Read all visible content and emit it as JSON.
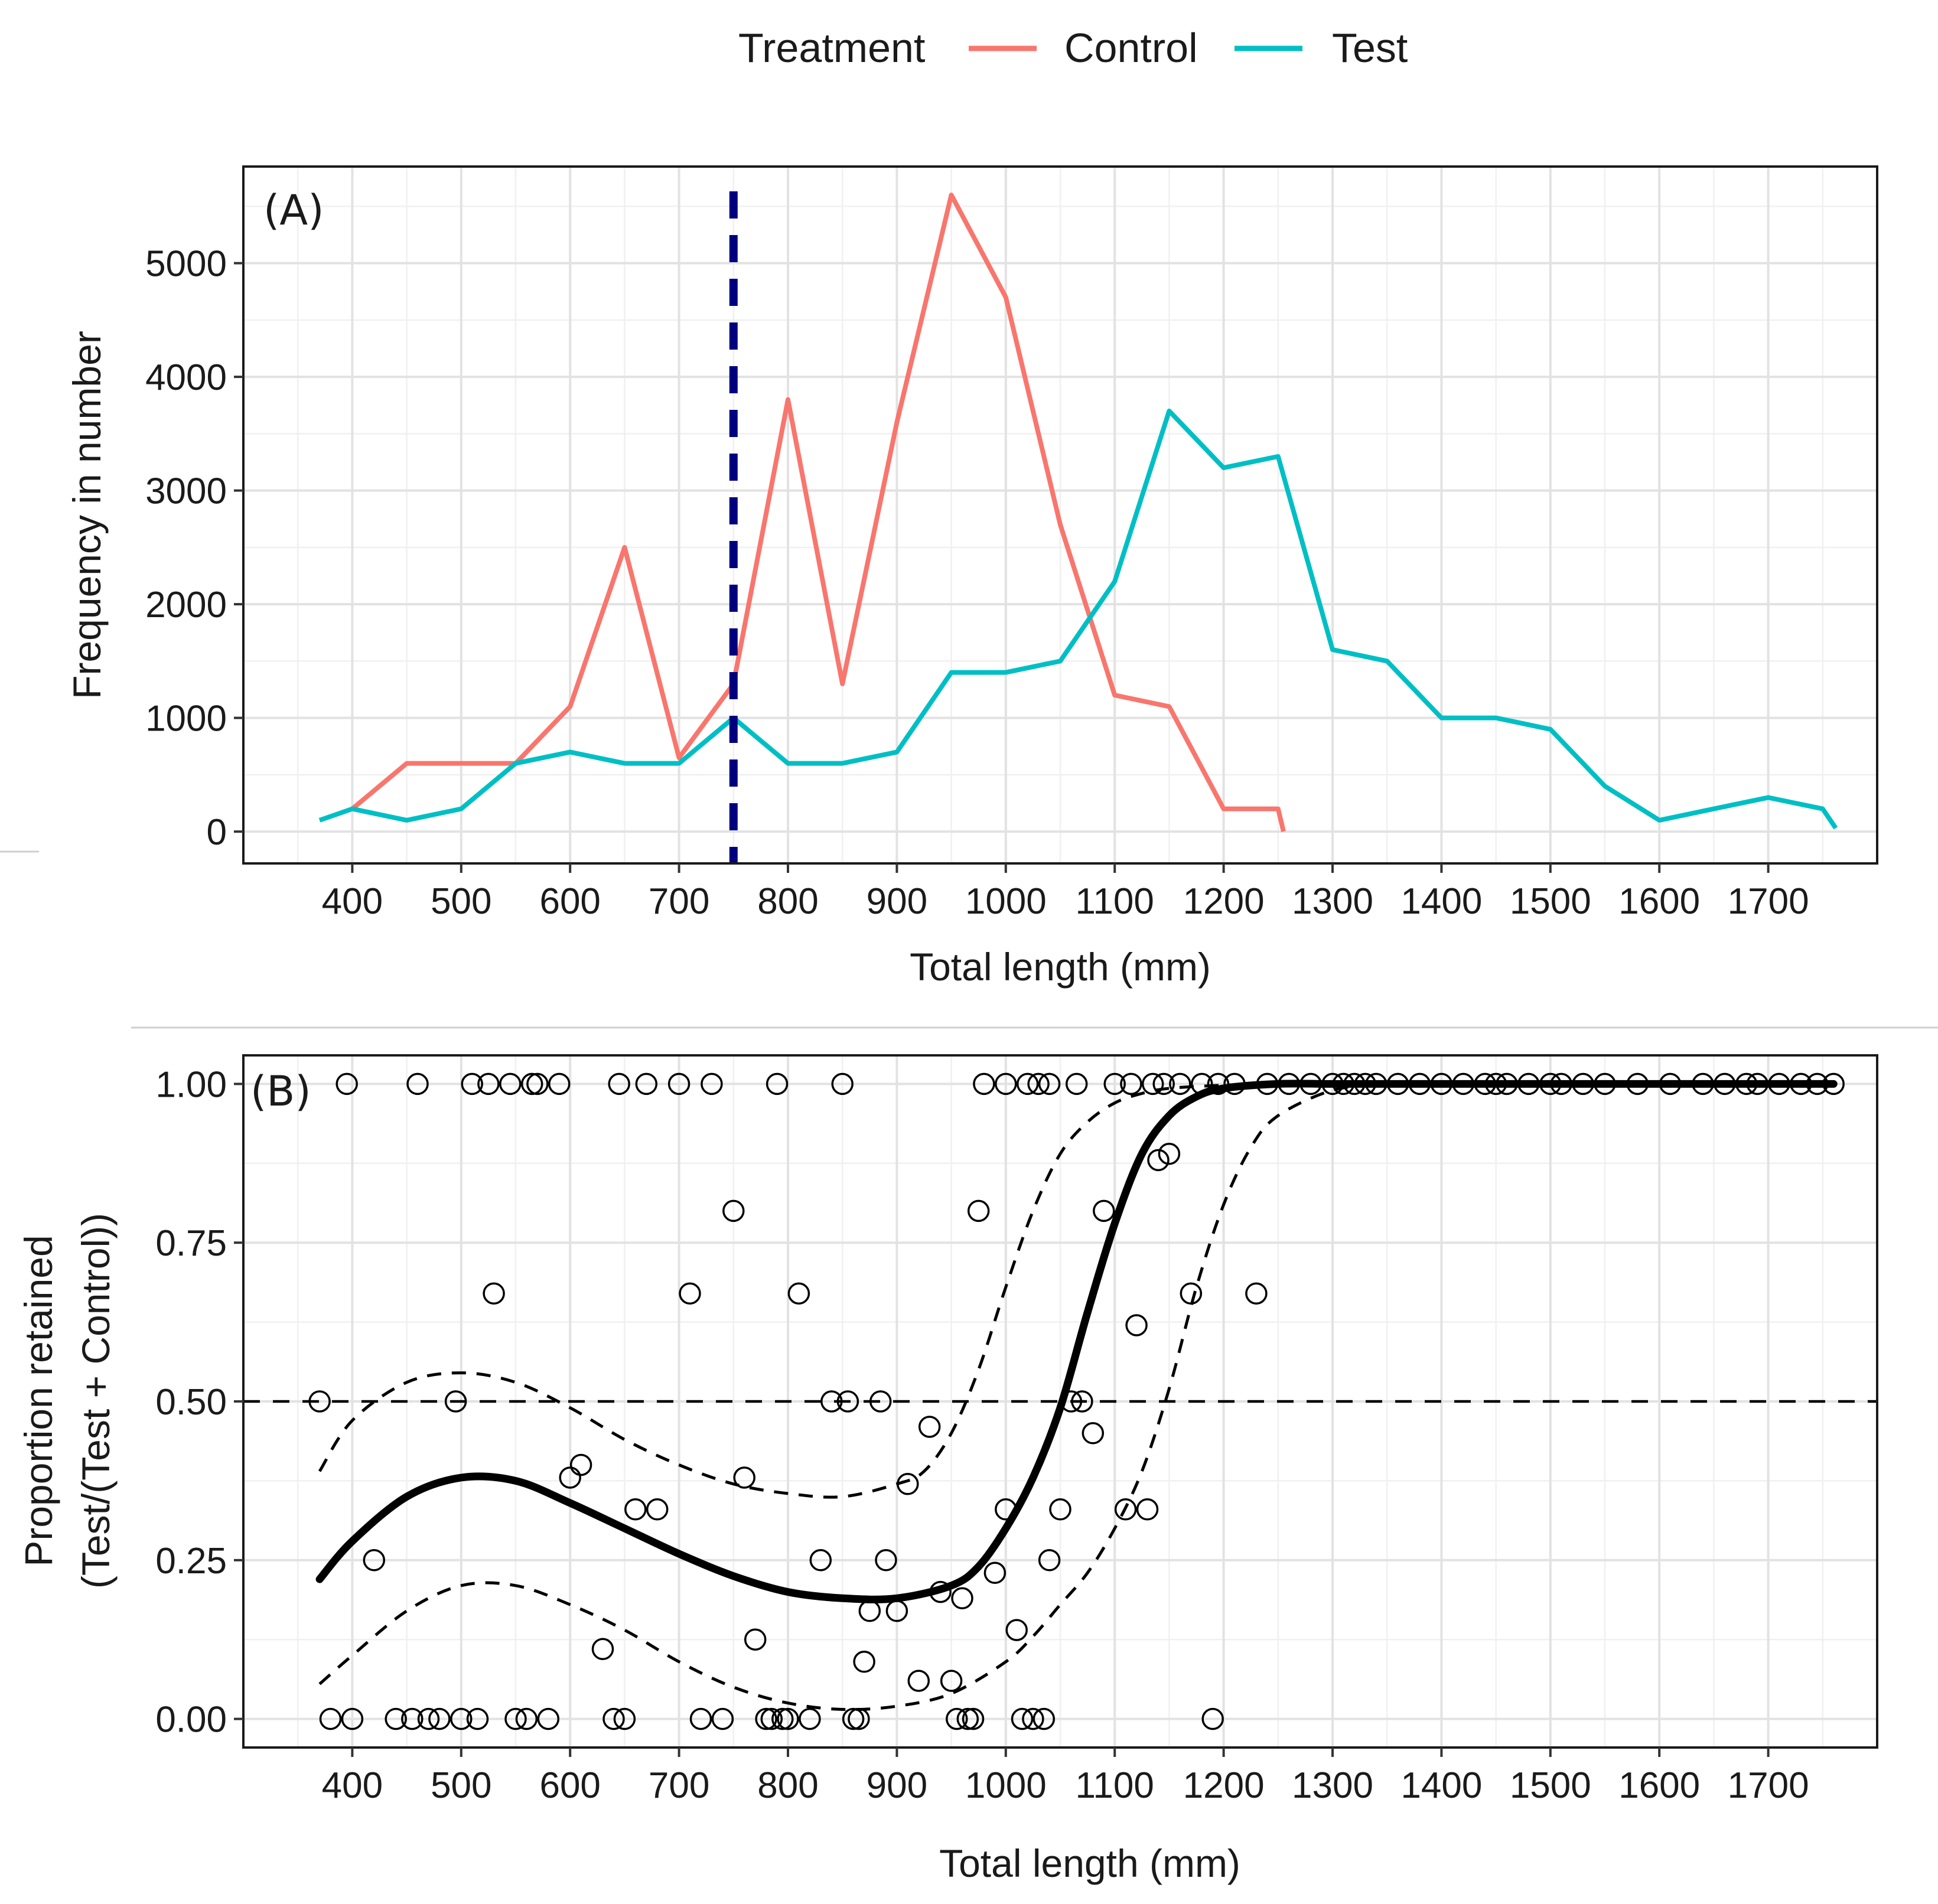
{
  "legend": {
    "title": "Treatment",
    "entries": [
      {
        "label": "Control",
        "color": "#F8766D"
      },
      {
        "label": "Test",
        "color": "#00BFC4"
      }
    ]
  },
  "colors": {
    "vline": "#00007F",
    "fit": "#000000",
    "ci": "#000000",
    "points": "#000000"
  },
  "chart_data": [
    {
      "type": "line",
      "panel_label": "(A)",
      "xlabel": "Total length (mm)",
      "ylabel": "Frequency in number",
      "xlim": [
        300,
        1800
      ],
      "ylim": [
        -280,
        5850
      ],
      "xticks": [
        400,
        500,
        600,
        700,
        800,
        900,
        1000,
        1100,
        1200,
        1300,
        1400,
        1500,
        1600,
        1700
      ],
      "yticks": [
        0,
        1000,
        2000,
        3000,
        4000,
        5000
      ],
      "reference_line": {
        "orientation": "vertical",
        "x": 750,
        "style": "dashed",
        "color": "#00007F"
      },
      "series": [
        {
          "name": "Control",
          "color": "#F8766D",
          "x": [
            400,
            450,
            500,
            550,
            600,
            650,
            700,
            750,
            800,
            850,
            900,
            950,
            1000,
            1050,
            1100,
            1150,
            1200,
            1250,
            1255
          ],
          "y": [
            200,
            600,
            600,
            600,
            1100,
            2500,
            650,
            1300,
            3800,
            1300,
            3600,
            5600,
            4700,
            2700,
            1200,
            1100,
            200,
            200,
            0
          ]
        },
        {
          "name": "Test",
          "color": "#00BFC4",
          "x": [
            370,
            400,
            450,
            500,
            550,
            600,
            650,
            700,
            750,
            800,
            850,
            900,
            950,
            1000,
            1050,
            1100,
            1150,
            1200,
            1250,
            1300,
            1350,
            1400,
            1450,
            1500,
            1550,
            1600,
            1650,
            1700,
            1750,
            1762
          ],
          "y": [
            100,
            200,
            100,
            200,
            600,
            700,
            600,
            600,
            1000,
            600,
            600,
            700,
            1400,
            1400,
            1500,
            2200,
            3700,
            3200,
            3300,
            1600,
            1500,
            1000,
            1000,
            900,
            400,
            100,
            200,
            300,
            200,
            30
          ]
        }
      ]
    },
    {
      "type": "scatter",
      "panel_label": "(B)",
      "xlabel": "Total length (mm)",
      "ylabel_line1": "Proportion retained",
      "ylabel_line2": "(Test/(Test + Control))",
      "xlim": [
        300,
        1800
      ],
      "ylim": [
        -0.045,
        1.045
      ],
      "xticks": [
        400,
        500,
        600,
        700,
        800,
        900,
        1000,
        1100,
        1200,
        1300,
        1400,
        1500,
        1600,
        1700
      ],
      "yticks": [
        "0.00",
        "0.25",
        "0.50",
        "0.75",
        "1.00"
      ],
      "reference_line": {
        "orientation": "horizontal",
        "y": 0.5,
        "style": "dashed"
      },
      "points": [
        [
          370,
          0.5
        ],
        [
          380,
          0
        ],
        [
          395,
          1
        ],
        [
          400,
          0
        ],
        [
          420,
          0.25
        ],
        [
          440,
          0
        ],
        [
          455,
          0
        ],
        [
          460,
          1
        ],
        [
          470,
          0
        ],
        [
          480,
          0
        ],
        [
          495,
          0.5
        ],
        [
          500,
          0
        ],
        [
          510,
          1
        ],
        [
          515,
          0
        ],
        [
          525,
          1
        ],
        [
          530,
          0.67
        ],
        [
          545,
          1
        ],
        [
          550,
          0
        ],
        [
          560,
          0
        ],
        [
          565,
          1
        ],
        [
          570,
          1
        ],
        [
          580,
          0
        ],
        [
          590,
          1
        ],
        [
          600,
          0.38
        ],
        [
          610,
          0.4
        ],
        [
          630,
          0.11
        ],
        [
          640,
          0
        ],
        [
          645,
          1
        ],
        [
          650,
          0
        ],
        [
          660,
          0.33
        ],
        [
          670,
          1
        ],
        [
          680,
          0.33
        ],
        [
          700,
          1
        ],
        [
          710,
          0.67
        ],
        [
          720,
          0
        ],
        [
          730,
          1
        ],
        [
          740,
          0
        ],
        [
          750,
          0.8
        ],
        [
          760,
          0.38
        ],
        [
          770,
          0.125
        ],
        [
          780,
          0
        ],
        [
          785,
          0
        ],
        [
          790,
          1
        ],
        [
          795,
          0
        ],
        [
          800,
          0
        ],
        [
          810,
          0.67
        ],
        [
          820,
          0
        ],
        [
          830,
          0.25
        ],
        [
          840,
          0.5
        ],
        [
          850,
          1
        ],
        [
          855,
          0.5
        ],
        [
          860,
          0
        ],
        [
          865,
          0
        ],
        [
          870,
          0.09
        ],
        [
          875,
          0.17
        ],
        [
          885,
          0.5
        ],
        [
          890,
          0.25
        ],
        [
          900,
          0.17
        ],
        [
          910,
          0.37
        ],
        [
          920,
          0.06
        ],
        [
          930,
          0.46
        ],
        [
          940,
          0.2
        ],
        [
          950,
          0.06
        ],
        [
          955,
          0
        ],
        [
          960,
          0.19
        ],
        [
          965,
          0
        ],
        [
          970,
          0
        ],
        [
          975,
          0.8
        ],
        [
          980,
          1
        ],
        [
          990,
          0.23
        ],
        [
          1000,
          0.33
        ],
        [
          1000,
          1
        ],
        [
          1010,
          0.14
        ],
        [
          1015,
          0
        ],
        [
          1020,
          1
        ],
        [
          1025,
          0
        ],
        [
          1030,
          1
        ],
        [
          1035,
          0
        ],
        [
          1040,
          0.25
        ],
        [
          1040,
          1
        ],
        [
          1050,
          0.33
        ],
        [
          1060,
          0.5
        ],
        [
          1065,
          1
        ],
        [
          1070,
          0.5
        ],
        [
          1080,
          0.45
        ],
        [
          1090,
          0.8
        ],
        [
          1100,
          1
        ],
        [
          1110,
          0.33
        ],
        [
          1115,
          1
        ],
        [
          1120,
          0.62
        ],
        [
          1130,
          0.33
        ],
        [
          1135,
          1
        ],
        [
          1140,
          0.88
        ],
        [
          1145,
          1
        ],
        [
          1150,
          0.89
        ],
        [
          1160,
          1
        ],
        [
          1170,
          0.67
        ],
        [
          1180,
          1
        ],
        [
          1190,
          0
        ],
        [
          1195,
          1
        ],
        [
          1210,
          1
        ],
        [
          1230,
          0.67
        ],
        [
          1240,
          1
        ],
        [
          1260,
          1
        ],
        [
          1280,
          1
        ],
        [
          1300,
          1
        ],
        [
          1310,
          1
        ],
        [
          1320,
          1
        ],
        [
          1330,
          1
        ],
        [
          1340,
          1
        ],
        [
          1360,
          1
        ],
        [
          1380,
          1
        ],
        [
          1400,
          1
        ],
        [
          1420,
          1
        ],
        [
          1440,
          1
        ],
        [
          1450,
          1
        ],
        [
          1460,
          1
        ],
        [
          1480,
          1
        ],
        [
          1500,
          1
        ],
        [
          1510,
          1
        ],
        [
          1530,
          1
        ],
        [
          1550,
          1
        ],
        [
          1580,
          1
        ],
        [
          1610,
          1
        ],
        [
          1640,
          1
        ],
        [
          1660,
          1
        ],
        [
          1680,
          1
        ],
        [
          1690,
          1
        ],
        [
          1710,
          1
        ],
        [
          1730,
          1
        ],
        [
          1745,
          1
        ],
        [
          1760,
          1
        ]
      ],
      "fit": {
        "x": [
          370,
          400,
          450,
          500,
          550,
          600,
          650,
          700,
          750,
          800,
          850,
          900,
          950,
          975,
          1000,
          1025,
          1050,
          1075,
          1100,
          1125,
          1150,
          1175,
          1200,
          1250,
          1300,
          1350,
          1400,
          1500,
          1600,
          1700,
          1760
        ],
        "y": [
          0.22,
          0.28,
          0.35,
          0.38,
          0.375,
          0.34,
          0.3,
          0.26,
          0.225,
          0.2,
          0.19,
          0.19,
          0.21,
          0.24,
          0.3,
          0.38,
          0.49,
          0.64,
          0.78,
          0.89,
          0.95,
          0.98,
          0.993,
          1.0,
          1.0,
          1.0,
          1.0,
          1.0,
          1.0,
          1.0,
          1.0
        ]
      },
      "ci_upper": {
        "x": [
          370,
          400,
          450,
          500,
          550,
          600,
          650,
          700,
          750,
          800,
          850,
          900,
          925,
          950,
          975,
          1000,
          1025,
          1050,
          1075,
          1100,
          1125,
          1150,
          1200,
          1250,
          1300,
          1350
        ],
        "y": [
          0.39,
          0.47,
          0.53,
          0.545,
          0.53,
          0.49,
          0.44,
          0.4,
          0.37,
          0.355,
          0.35,
          0.37,
          0.39,
          0.45,
          0.55,
          0.68,
          0.8,
          0.89,
          0.94,
          0.97,
          0.985,
          0.993,
          0.998,
          1.0,
          1.0,
          1.0
        ]
      },
      "ci_lower": {
        "x": [
          370,
          400,
          450,
          500,
          550,
          600,
          650,
          700,
          750,
          800,
          850,
          900,
          950,
          1000,
          1025,
          1050,
          1075,
          1100,
          1125,
          1150,
          1175,
          1200,
          1225,
          1250,
          1300,
          1350
        ],
        "y": [
          0.055,
          0.1,
          0.17,
          0.21,
          0.21,
          0.18,
          0.14,
          0.09,
          0.05,
          0.025,
          0.015,
          0.02,
          0.04,
          0.09,
          0.13,
          0.18,
          0.23,
          0.3,
          0.39,
          0.52,
          0.68,
          0.81,
          0.9,
          0.95,
          0.99,
          1.0
        ]
      }
    }
  ]
}
